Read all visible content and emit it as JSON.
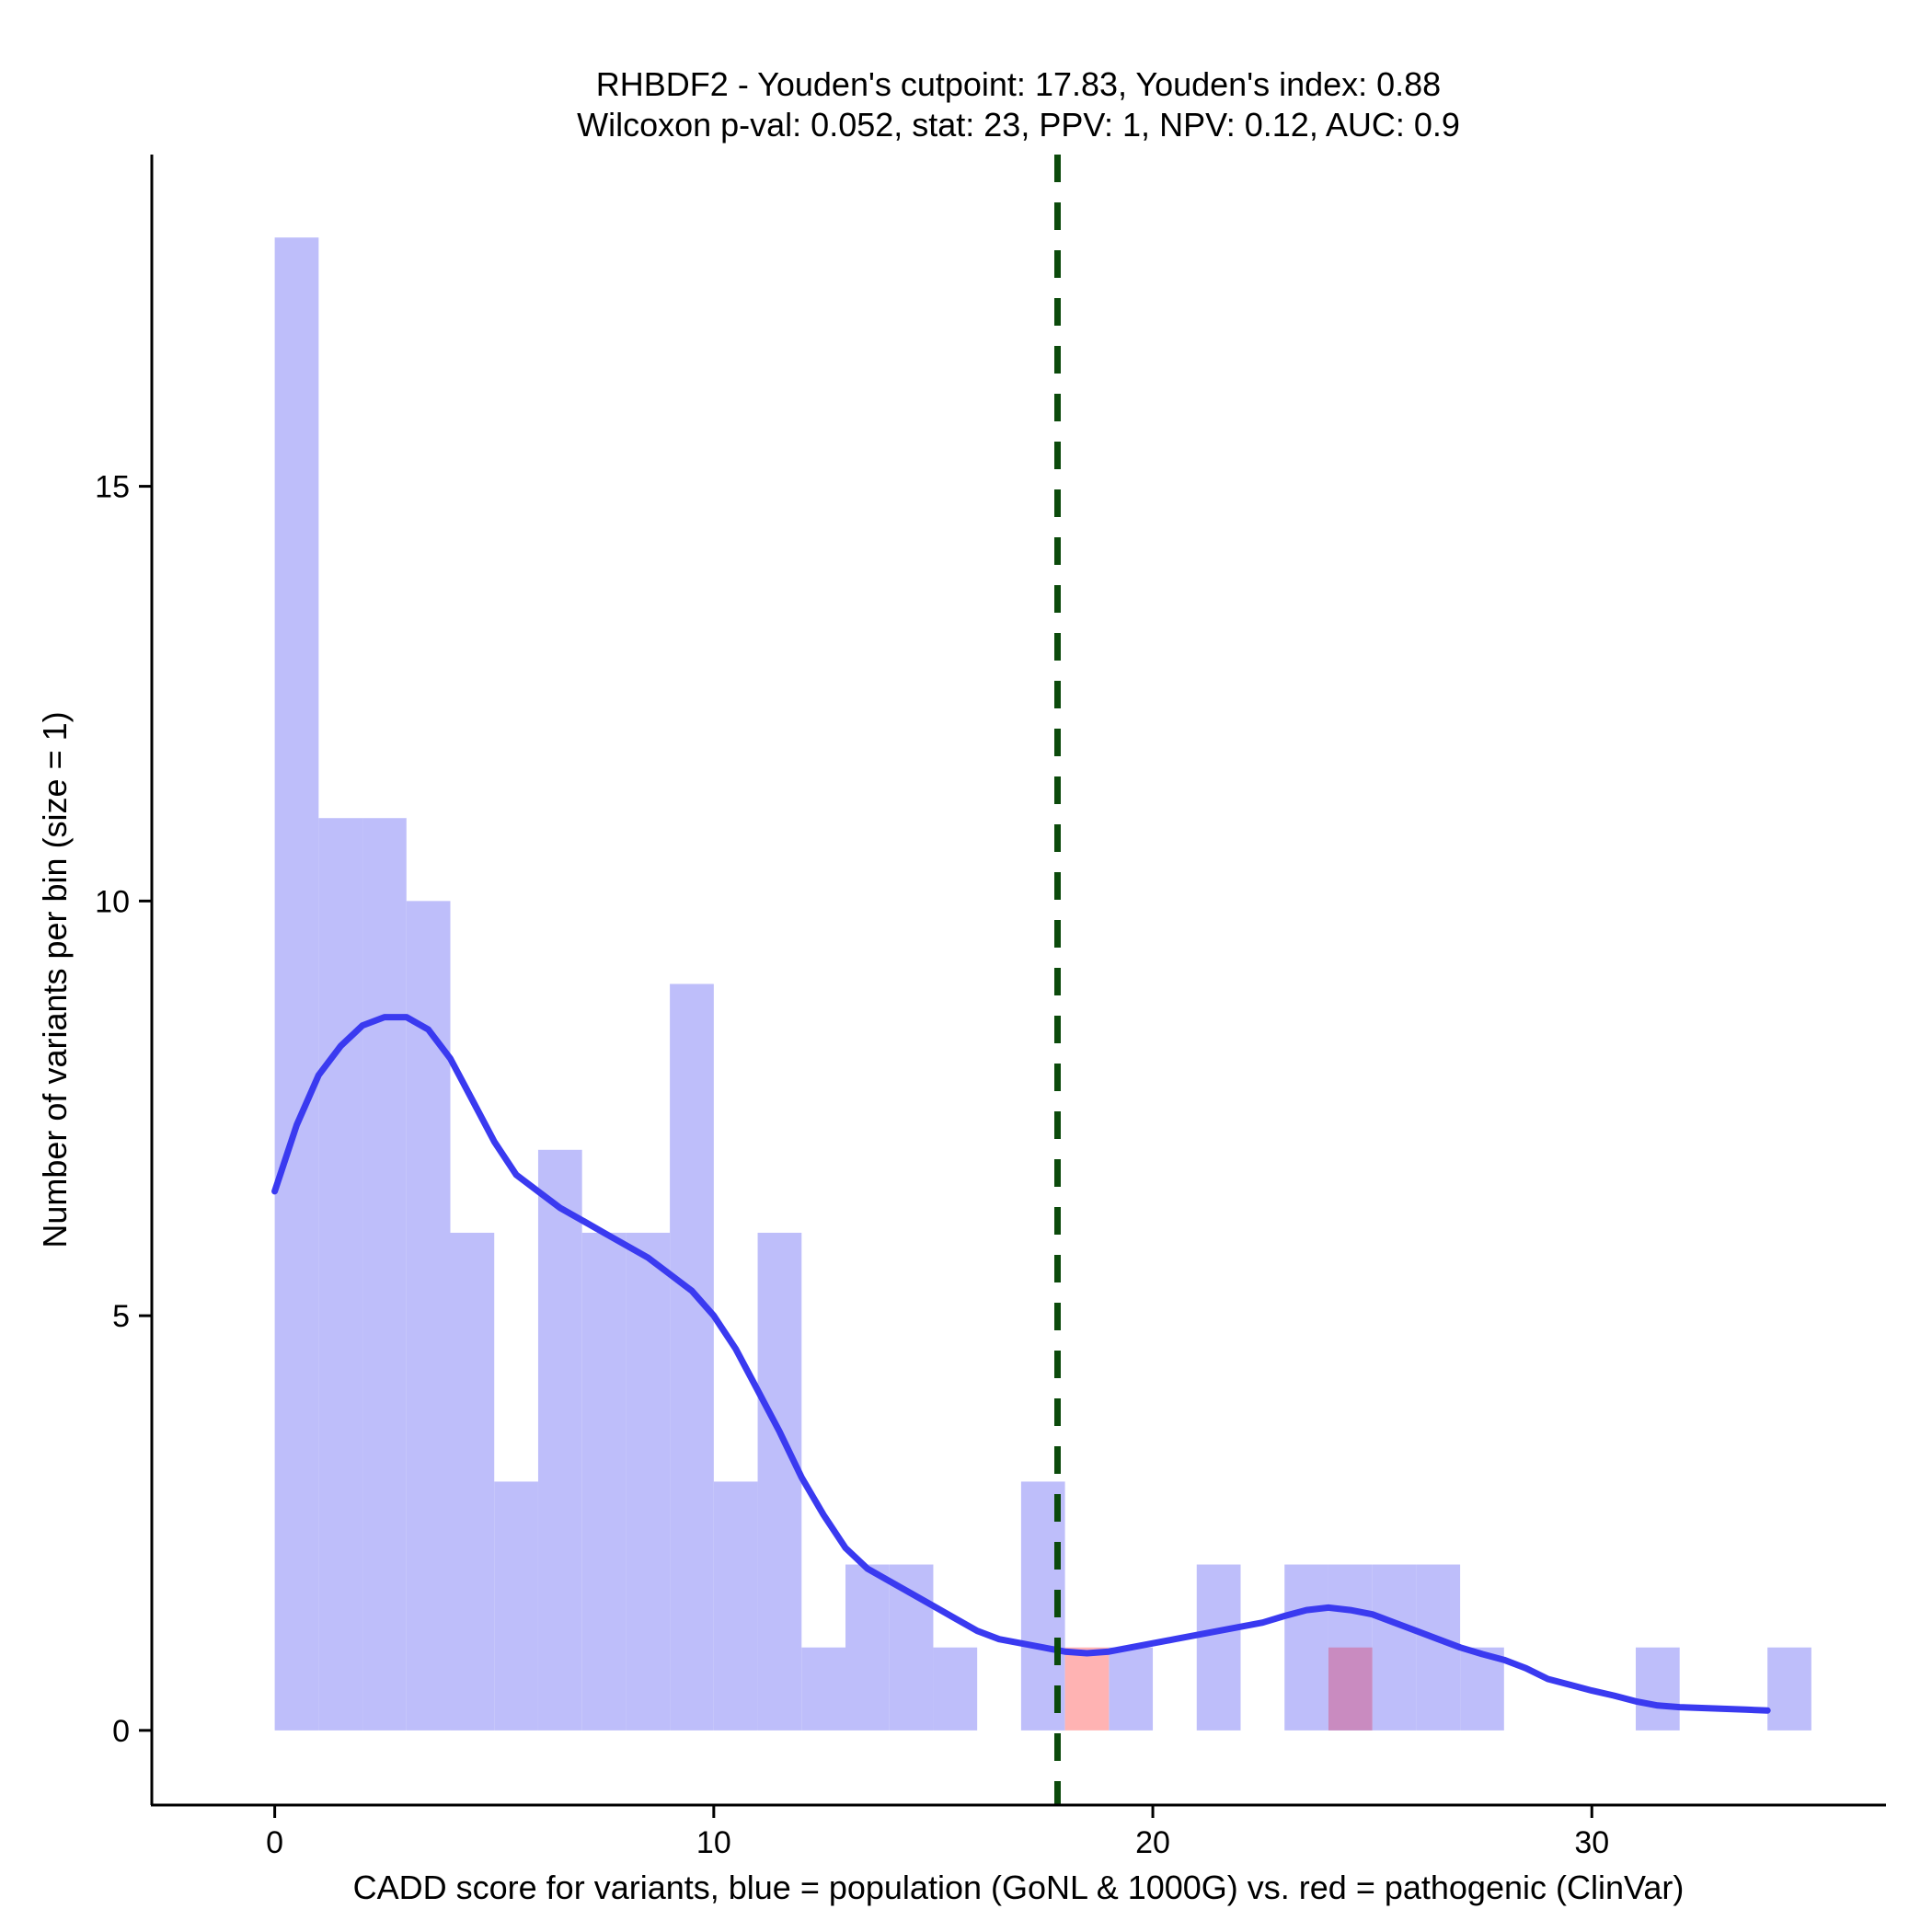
{
  "chart_data": {
    "type": "histogram",
    "title_line1": "RHBDF2 - Youden's cutpoint: 17.83, Youden's index: 0.88",
    "title_line2": "Wilcoxon p-val: 0.052, stat: 23, PPV: 1, NPV: 0.12, AUC: 0.9",
    "xlabel": "CADD score for variants, blue = population (GoNL & 1000G) vs. red = pathogenic (ClinVar)",
    "ylabel": "Number of variants per bin (size = 1)",
    "xlim": [
      -2.8,
      36.7
    ],
    "ylim": [
      -0.9,
      19.0
    ],
    "x_ticks": [
      0,
      10,
      20,
      30
    ],
    "y_ticks": [
      0,
      5,
      10,
      15
    ],
    "bin_size": 1,
    "cutpoint": 17.83,
    "population_bins": [
      {
        "x0": 0,
        "count": 18
      },
      {
        "x0": 1,
        "count": 11
      },
      {
        "x0": 2,
        "count": 11
      },
      {
        "x0": 3,
        "count": 10
      },
      {
        "x0": 4,
        "count": 6
      },
      {
        "x0": 5,
        "count": 3
      },
      {
        "x0": 6,
        "count": 7
      },
      {
        "x0": 7,
        "count": 6
      },
      {
        "x0": 8,
        "count": 6
      },
      {
        "x0": 9,
        "count": 9
      },
      {
        "x0": 10,
        "count": 3
      },
      {
        "x0": 11,
        "count": 6
      },
      {
        "x0": 12,
        "count": 1
      },
      {
        "x0": 13,
        "count": 2
      },
      {
        "x0": 14,
        "count": 2
      },
      {
        "x0": 15,
        "count": 1
      },
      {
        "x0": 17,
        "count": 3
      },
      {
        "x0": 19,
        "count": 1
      },
      {
        "x0": 21,
        "count": 2
      },
      {
        "x0": 23,
        "count": 2
      },
      {
        "x0": 24,
        "count": 2
      },
      {
        "x0": 25,
        "count": 2
      },
      {
        "x0": 26,
        "count": 2
      },
      {
        "x0": 27,
        "count": 1
      },
      {
        "x0": 31,
        "count": 1
      },
      {
        "x0": 34,
        "count": 1
      }
    ],
    "pathogenic_bins": [
      {
        "x0": 18,
        "count": 1
      },
      {
        "x0": 24,
        "count": 1
      }
    ],
    "density_curve": {
      "x": [
        0,
        0.5,
        1,
        1.5,
        2,
        2.5,
        3,
        3.5,
        4,
        4.5,
        5,
        5.5,
        6,
        6.5,
        7,
        7.5,
        8,
        8.5,
        9,
        9.5,
        10,
        10.5,
        11,
        11.5,
        12,
        12.5,
        13,
        13.5,
        14,
        14.5,
        15,
        15.5,
        16,
        16.5,
        17,
        17.5,
        18,
        18.5,
        19,
        19.5,
        20,
        20.5,
        21,
        21.5,
        22,
        22.5,
        23,
        23.5,
        24,
        24.5,
        25,
        25.5,
        26,
        26.5,
        27,
        27.5,
        28,
        28.5,
        29,
        29.5,
        30,
        30.5,
        31,
        31.5,
        32,
        32.5,
        33,
        33.5,
        34
      ],
      "y": [
        6.5,
        7.3,
        7.9,
        8.25,
        8.5,
        8.6,
        8.6,
        8.45,
        8.1,
        7.6,
        7.1,
        6.7,
        6.5,
        6.3,
        6.15,
        6.0,
        5.85,
        5.7,
        5.5,
        5.3,
        5.0,
        4.6,
        4.1,
        3.6,
        3.05,
        2.6,
        2.2,
        1.95,
        1.8,
        1.65,
        1.5,
        1.35,
        1.2,
        1.1,
        1.05,
        1.0,
        0.95,
        0.93,
        0.95,
        1.0,
        1.05,
        1.1,
        1.15,
        1.2,
        1.25,
        1.3,
        1.38,
        1.45,
        1.48,
        1.45,
        1.4,
        1.3,
        1.2,
        1.1,
        1.0,
        0.92,
        0.85,
        0.75,
        0.62,
        0.55,
        0.48,
        0.42,
        0.35,
        0.3,
        0.28,
        0.27,
        0.26,
        0.25,
        0.24
      ]
    },
    "colors": {
      "population_bar": "#bebefa",
      "pathogenic_bar": "#ffb3b3",
      "overlap_bar": "#c98bc0",
      "density_line": "#3a3af0",
      "cutpoint_line": "#0b4a0b",
      "axis": "#000000"
    }
  }
}
